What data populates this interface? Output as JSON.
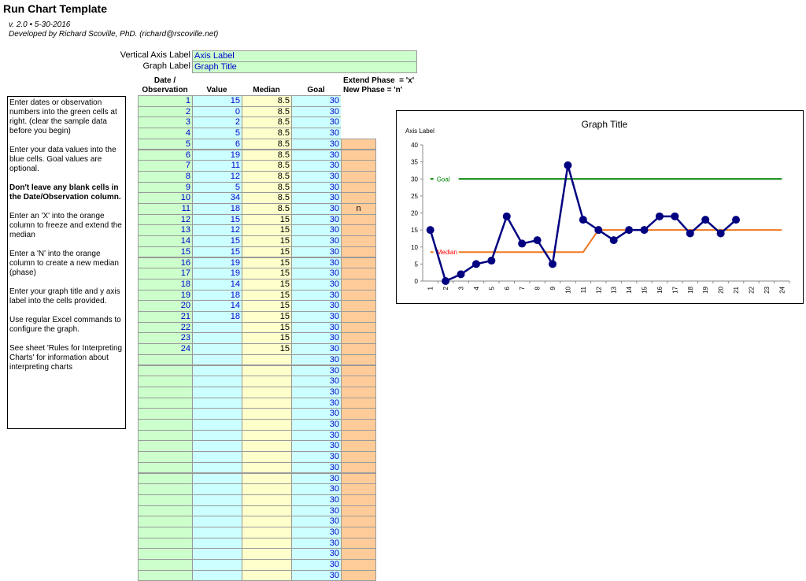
{
  "header": {
    "title": "Run Chart Template",
    "version": "v. 2.0 • 5-30-2016",
    "author": "Developed by Richard Scoville, PhD. (richard@rscoville.net)"
  },
  "settings": [
    {
      "label": "Vertical Axis Label",
      "value": "Axis Label"
    },
    {
      "label": "Graph Label",
      "value": "Graph Title"
    }
  ],
  "instructions": [
    {
      "text": "Enter dates or observation numbers into the green cells at right. (clear the sample data before you begin)"
    },
    {
      "text": "Enter your data values into the blue cells. Goal values are optional."
    },
    {
      "text": "Don't leave any blank cells in the Date/Observation column.",
      "bold": true
    },
    {
      "text": "Enter an 'X' into the orange column to freeze and extend the median"
    },
    {
      "text": "Enter a 'N' into the orange column to create a new median (phase)"
    },
    {
      "text": "Enter your graph title and y axis label into the cells provided."
    },
    {
      "text": "Use regular Excel commands to configure the graph."
    },
    {
      "text": "See sheet 'Rules for Interpreting Charts' for information about interpreting charts"
    }
  ],
  "table": {
    "columns": [
      "Date /\nObservation",
      "Value",
      "Median",
      "Goal"
    ],
    "phase_header": [
      "Extend Phase  = 'x'",
      "New Phase = 'n'"
    ],
    "rows": [
      [
        1,
        15,
        8.5,
        30,
        null
      ],
      [
        2,
        0,
        8.5,
        30,
        null
      ],
      [
        3,
        2,
        8.5,
        30,
        null
      ],
      [
        4,
        5,
        8.5,
        30,
        null
      ],
      [
        5,
        6,
        8.5,
        30,
        null
      ],
      [
        6,
        19,
        8.5,
        30,
        null
      ],
      [
        7,
        11,
        8.5,
        30,
        null
      ],
      [
        8,
        12,
        8.5,
        30,
        null
      ],
      [
        9,
        5,
        8.5,
        30,
        null
      ],
      [
        10,
        34,
        8.5,
        30,
        null
      ],
      [
        11,
        18,
        8.5,
        30,
        "n"
      ],
      [
        12,
        15,
        15,
        30,
        null
      ],
      [
        13,
        12,
        15,
        30,
        null
      ],
      [
        14,
        15,
        15,
        30,
        null
      ],
      [
        15,
        15,
        15,
        30,
        null
      ],
      [
        16,
        19,
        15,
        30,
        null
      ],
      [
        17,
        19,
        15,
        30,
        null
      ],
      [
        18,
        14,
        15,
        30,
        null
      ],
      [
        19,
        18,
        15,
        30,
        null
      ],
      [
        20,
        14,
        15,
        30,
        null
      ],
      [
        21,
        18,
        15,
        30,
        null
      ],
      [
        22,
        null,
        15,
        30,
        null
      ],
      [
        23,
        null,
        15,
        30,
        null
      ],
      [
        24,
        null,
        15,
        30,
        null
      ],
      [
        null,
        null,
        null,
        30,
        null
      ],
      [
        null,
        null,
        null,
        30,
        null
      ],
      [
        null,
        null,
        null,
        30,
        null
      ],
      [
        null,
        null,
        null,
        30,
        null
      ],
      [
        null,
        null,
        null,
        30,
        null
      ],
      [
        null,
        null,
        null,
        30,
        null
      ],
      [
        null,
        null,
        null,
        30,
        null
      ],
      [
        null,
        null,
        null,
        30,
        null
      ],
      [
        null,
        null,
        null,
        30,
        null
      ],
      [
        null,
        null,
        null,
        30,
        null
      ],
      [
        null,
        null,
        null,
        30,
        null
      ],
      [
        null,
        null,
        null,
        30,
        null
      ],
      [
        null,
        null,
        null,
        30,
        null
      ],
      [
        null,
        null,
        null,
        30,
        null
      ],
      [
        null,
        null,
        null,
        30,
        null
      ],
      [
        null,
        null,
        null,
        30,
        null
      ],
      [
        null,
        null,
        null,
        30,
        null
      ],
      [
        null,
        null,
        null,
        30,
        null
      ],
      [
        null,
        null,
        null,
        30,
        null
      ],
      [
        null,
        null,
        null,
        30,
        null
      ],
      [
        null,
        null,
        null,
        30,
        null
      ]
    ]
  },
  "chart_data": {
    "type": "line",
    "title": "Graph Title",
    "y_label": "Axis Label",
    "categories": [
      "1",
      "2",
      "3",
      "4",
      "5",
      "6",
      "7",
      "8",
      "9",
      "10",
      "11",
      "12",
      "13",
      "14",
      "15",
      "16",
      "17",
      "18",
      "19",
      "20",
      "21",
      "22",
      "23",
      "24"
    ],
    "ylim": [
      0,
      40
    ],
    "yticks": [
      0,
      5,
      10,
      15,
      20,
      25,
      30,
      35,
      40
    ],
    "series": [
      {
        "color": "#000080",
        "markers": true,
        "values": [
          15,
          0,
          2,
          5,
          6,
          19,
          11,
          12,
          5,
          34,
          18,
          15,
          12,
          15,
          15,
          19,
          19,
          14,
          18,
          14,
          18,
          null,
          null,
          null
        ]
      },
      {
        "name": "Median",
        "color": "#f07820",
        "label_color": "#ff0000",
        "values": [
          8.5,
          8.5,
          8.5,
          8.5,
          8.5,
          8.5,
          8.5,
          8.5,
          8.5,
          8.5,
          8.5,
          15,
          15,
          15,
          15,
          15,
          15,
          15,
          15,
          15,
          15,
          15,
          15,
          15
        ]
      },
      {
        "name": "Goal",
        "color": "#008000",
        "label_color": "#008000",
        "values": [
          30,
          30,
          30,
          30,
          30,
          30,
          30,
          30,
          30,
          30,
          30,
          30,
          30,
          30,
          30,
          30,
          30,
          30,
          30,
          30,
          30,
          30,
          30,
          30
        ]
      }
    ]
  }
}
